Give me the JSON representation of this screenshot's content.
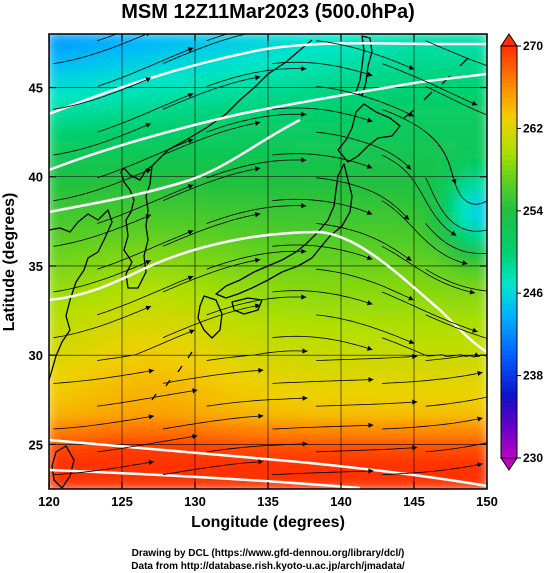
{
  "chart_data": {
    "type": "heatmap",
    "title": "MSM 12Z11Mar2023 (500.0hPa)",
    "xlabel": "Longitude (degrees)",
    "ylabel": "Latitude  (degrees)",
    "xlim": [
      120,
      150
    ],
    "ylim": [
      22.5,
      48
    ],
    "xticks": [
      "120",
      "125",
      "130",
      "135",
      "140",
      "145",
      "150"
    ],
    "yticks": [
      "25",
      "30",
      "35",
      "40",
      "45"
    ],
    "colorbar": {
      "min": 230,
      "max": 270,
      "ticks": [
        "230",
        "238",
        "246",
        "254",
        "262",
        "270"
      ],
      "colors": [
        {
          "v": 230,
          "c": "#c000c8"
        },
        {
          "v": 233,
          "c": "#6a00c8"
        },
        {
          "v": 236,
          "c": "#1010c8"
        },
        {
          "v": 240,
          "c": "#0060ff"
        },
        {
          "v": 244,
          "c": "#00b4ff"
        },
        {
          "v": 247,
          "c": "#00e8c8"
        },
        {
          "v": 250,
          "c": "#00d070"
        },
        {
          "v": 254,
          "c": "#20c040"
        },
        {
          "v": 257,
          "c": "#60d020"
        },
        {
          "v": 260,
          "c": "#b0e000"
        },
        {
          "v": 263,
          "c": "#f0d000"
        },
        {
          "v": 266,
          "c": "#ff9000"
        },
        {
          "v": 270,
          "c": "#ff3000"
        }
      ]
    }
  },
  "credits": {
    "line1": "Drawing by DCL (https://www.gfd-dennou.org/library/dcl/)",
    "line2": "Data from http://database.rish.kyoto-u.ac.jp/arch/jmadata/"
  }
}
